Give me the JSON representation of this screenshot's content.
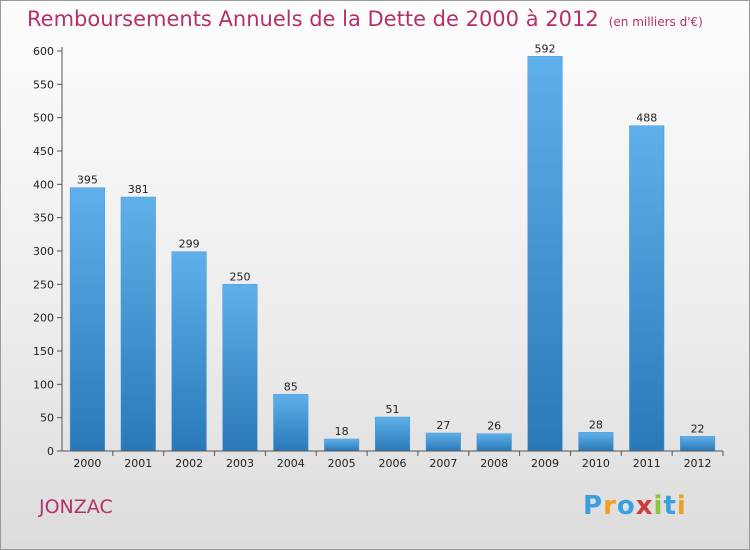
{
  "title": "Remboursements Annuels de la Dette de 2000 à 2012",
  "subtitle": "(en milliers d'€)",
  "commune": "JONZAC",
  "logo": {
    "letters": [
      "P",
      "r",
      "o",
      "x",
      "i",
      "t",
      "i"
    ],
    "colors": [
      "#3aa0dc",
      "#f0a020",
      "#3aa0dc",
      "#d03a3a",
      "#8ac43c",
      "#3aa0dc",
      "#f0a020"
    ]
  },
  "colors": {
    "accent": "#b5306a",
    "bar_top": "#5fb0ea",
    "bar_bottom": "#2a78b8"
  },
  "chart_data": {
    "type": "bar",
    "title": "Remboursements Annuels de la Dette de 2000 à 2012",
    "subtitle": "(en milliers d'€)",
    "categories": [
      "2000",
      "2001",
      "2002",
      "2003",
      "2004",
      "2005",
      "2006",
      "2007",
      "2008",
      "2009",
      "2010",
      "2011",
      "2012"
    ],
    "values": [
      395,
      381,
      299,
      250,
      85,
      18,
      51,
      27,
      26,
      592,
      28,
      488,
      22
    ],
    "ylim": [
      0,
      600
    ],
    "yticks": [
      0,
      50,
      100,
      150,
      200,
      250,
      300,
      350,
      400,
      450,
      500,
      550,
      600
    ],
    "grid": false,
    "data_labels": true
  }
}
